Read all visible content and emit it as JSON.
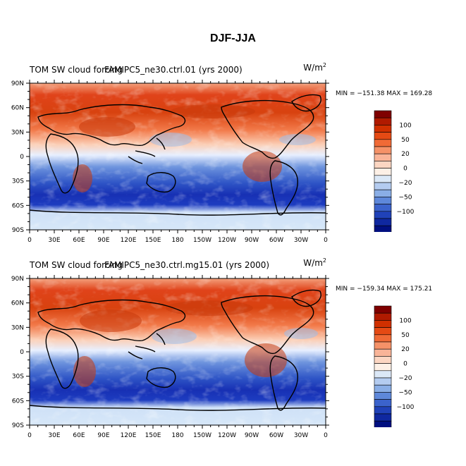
{
  "title": "DJF-JJA",
  "panels": [
    {
      "left_title": "TOM SW cloud forcing",
      "center_title": "FAMIPC5_ne30.ctrl.01 (yrs 2000)",
      "units_base": "W/m",
      "units_exp": "2",
      "min_max": "MIN = −151.38 MAX = 169.28"
    },
    {
      "left_title": "TOM SW cloud forcing",
      "center_title": "FAMIPC5_ne30.ctrl.mg15.01 (yrs 2000)",
      "units_base": "W/m",
      "units_exp": "2",
      "min_max": "MIN = −159.34 MAX = 175.21"
    }
  ],
  "axes": {
    "lat_labels": [
      "90N",
      "60N",
      "30N",
      "0",
      "30S",
      "60S",
      "90S"
    ],
    "lon_labels": [
      "0",
      "30E",
      "60E",
      "90E",
      "120E",
      "150E",
      "180",
      "150W",
      "120W",
      "90W",
      "60W",
      "30W",
      "0"
    ]
  },
  "colorbar": {
    "labels": [
      "100",
      "50",
      "20",
      "0",
      "−20",
      "−50",
      "−100"
    ],
    "colors": [
      "#7f0000",
      "#b01a00",
      "#d03000",
      "#e54a14",
      "#f06a36",
      "#f59268",
      "#f9b498",
      "#fcd6c2",
      "#fdf0e6",
      "#dbe8f7",
      "#b4ccf0",
      "#8aaee6",
      "#5e88da",
      "#3b63cc",
      "#2042b8",
      "#0f28a0",
      "#000f80"
    ]
  }
}
